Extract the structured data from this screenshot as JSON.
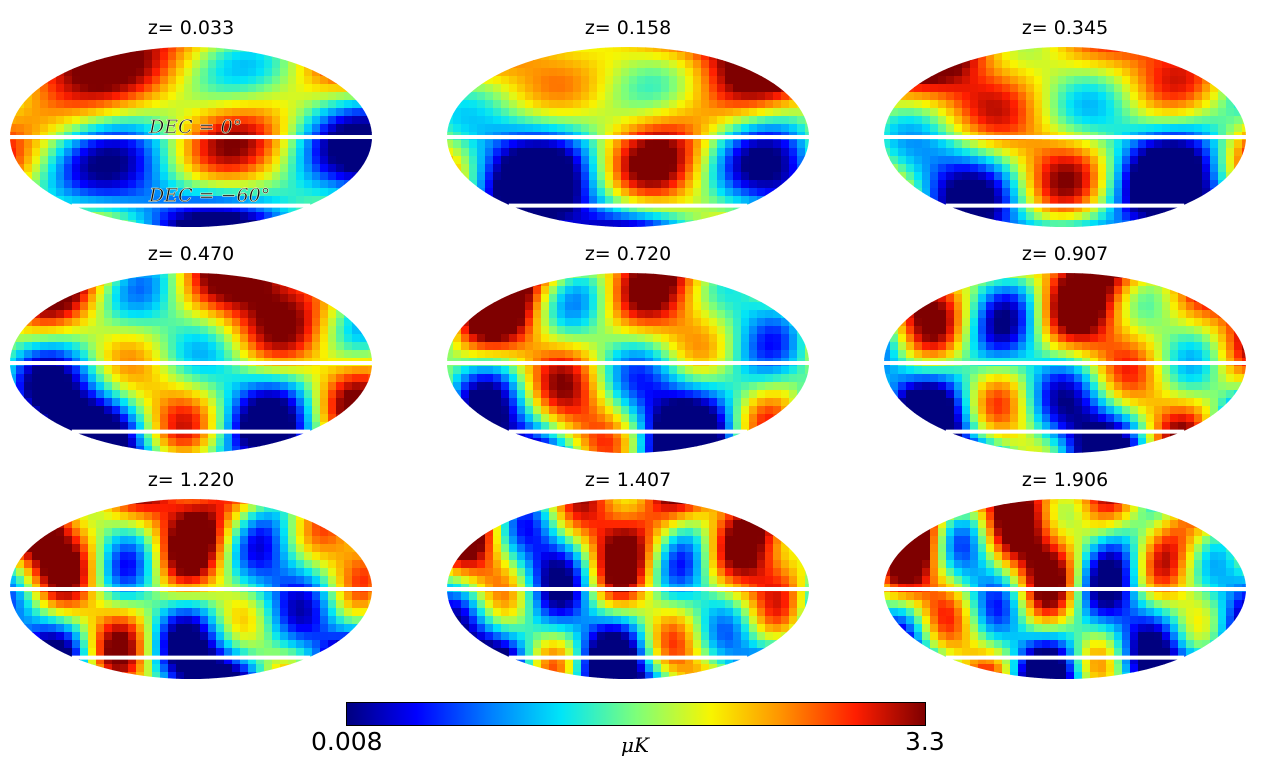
{
  "chart_data": {
    "type": "heatmap",
    "projection": "mollweide",
    "layout": "3x3 grid",
    "maps": [
      {
        "title": "z= 0.033",
        "z": 0.033
      },
      {
        "title": "z= 0.158",
        "z": 0.158
      },
      {
        "title": "z= 0.345",
        "z": 0.345
      },
      {
        "title": "z= 0.470",
        "z": 0.47
      },
      {
        "title": "z= 0.720",
        "z": 0.72
      },
      {
        "title": "z= 0.907",
        "z": 0.907
      },
      {
        "title": "z= 1.220",
        "z": 1.22
      },
      {
        "title": "z= 1.407",
        "z": 1.407
      },
      {
        "title": "z= 1.906",
        "z": 1.906
      }
    ],
    "dec_lines_deg": [
      0,
      -60
    ],
    "annotations": [
      "DEC = 0°",
      "DEC = −60°"
    ],
    "colorbar": {
      "min": 0.008,
      "max": 3.3,
      "min_label": "0.008",
      "max_label": "3.3",
      "unit": "μK",
      "colormap": "jet",
      "orientation": "horizontal",
      "placement": "bottom-center"
    },
    "colors": {
      "line": "#ffffff",
      "jet_stops": [
        "#00007f",
        "#0000ff",
        "#0080ff",
        "#00e5f8",
        "#7dff7a",
        "#f8f500",
        "#ff9400",
        "#ff1e00",
        "#7f0000"
      ]
    }
  }
}
